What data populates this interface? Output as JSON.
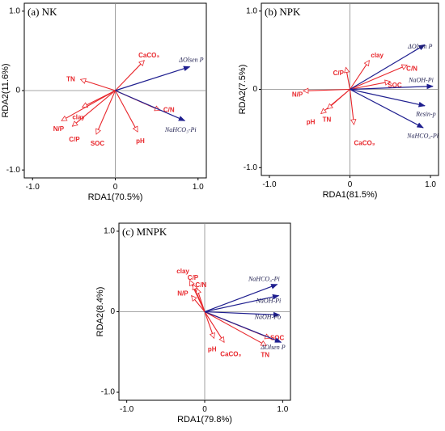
{
  "colors": {
    "soil": "#e8262b",
    "phosphorus": "#1f1f8f"
  },
  "chart_data": [
    {
      "type": "scatter",
      "title": "(a) NK",
      "xlabel": "RDA1(70.5%)",
      "ylabel": "RDA2(11.6%)",
      "xlim": [
        -1.0,
        1.0
      ],
      "ylim": [
        -1.0,
        1.0
      ],
      "xticks": [
        "-1.0",
        "0",
        "1.0"
      ],
      "yticks": [
        "-1.0",
        "0",
        "1.0"
      ],
      "soil_vectors": [
        {
          "label": "CaCO₃",
          "x": 0.35,
          "y": 0.38,
          "lx": 0.28,
          "ly": 0.44
        },
        {
          "label": "TN",
          "x": -0.42,
          "y": 0.14,
          "lx": -0.59,
          "ly": 0.14
        },
        {
          "label": "clay",
          "x": -0.4,
          "y": -0.21,
          "lx": -0.52,
          "ly": -0.34
        },
        {
          "label": "N/P",
          "x": -0.65,
          "y": -0.38,
          "lx": -0.75,
          "ly": -0.49
        },
        {
          "label": "C/P",
          "x": -0.52,
          "y": -0.45,
          "lx": -0.56,
          "ly": -0.62
        },
        {
          "label": "SOC",
          "x": -0.23,
          "y": -0.55,
          "lx": -0.3,
          "ly": -0.67
        },
        {
          "label": "C/N",
          "x": 0.54,
          "y": -0.25,
          "lx": 0.58,
          "ly": -0.25
        },
        {
          "label": "pH",
          "x": 0.27,
          "y": -0.52,
          "lx": 0.25,
          "ly": -0.64
        }
      ],
      "p_vectors": [
        {
          "label": "ΔOlsen P",
          "x": 0.9,
          "y": 0.3,
          "lx": 0.77,
          "ly": 0.38
        },
        {
          "label": "NaHCO₃-Pi",
          "x": 0.84,
          "y": -0.38,
          "lx": 0.6,
          "ly": -0.5
        }
      ]
    },
    {
      "type": "scatter",
      "title": "(b) NPK",
      "xlabel": "RDA1(81.5%)",
      "ylabel": "RDA2(7.5%)",
      "xlim": [
        -1.0,
        1.0
      ],
      "ylim": [
        -1.0,
        1.0
      ],
      "xticks": [
        "-1.0",
        "0",
        "1.0"
      ],
      "yticks": [
        "-1.0",
        "0",
        "1.0"
      ],
      "soil_vectors": [
        {
          "label": "clay",
          "x": 0.24,
          "y": 0.37,
          "lx": 0.26,
          "ly": 0.43
        },
        {
          "label": "C/P",
          "x": -0.05,
          "y": 0.28,
          "lx": -0.21,
          "ly": 0.2
        },
        {
          "label": "C/N",
          "x": 0.71,
          "y": 0.31,
          "lx": 0.7,
          "ly": 0.26
        },
        {
          "label": "SOC",
          "x": 0.5,
          "y": 0.1,
          "lx": 0.47,
          "ly": 0.05
        },
        {
          "label": "N/P",
          "x": -0.58,
          "y": -0.02,
          "lx": -0.72,
          "ly": -0.07
        },
        {
          "label": "pH",
          "x": -0.36,
          "y": -0.31,
          "lx": -0.54,
          "ly": -0.42
        },
        {
          "label": "TN",
          "x": -0.28,
          "y": -0.25,
          "lx": -0.34,
          "ly": -0.39
        },
        {
          "label": "CaCO₃",
          "x": 0.05,
          "y": -0.45,
          "lx": 0.05,
          "ly": -0.69
        }
      ],
      "p_vectors": [
        {
          "label": "ΔOlsen P",
          "x": 0.93,
          "y": 0.57,
          "lx": 0.72,
          "ly": 0.54
        },
        {
          "label": "NaOH-Pi",
          "x": 1.03,
          "y": 0.04,
          "lx": 0.73,
          "ly": 0.11
        },
        {
          "label": "Resin-p",
          "x": 0.93,
          "y": -0.21,
          "lx": 0.82,
          "ly": -0.32
        },
        {
          "label": "NaHCO₃-Pi",
          "x": 0.91,
          "y": -0.49,
          "lx": 0.71,
          "ly": -0.6
        }
      ]
    },
    {
      "type": "scatter",
      "title": "(c) MNPK",
      "xlabel": "RDA1(79.8%)",
      "ylabel": "RDA2(8.4%)",
      "xlim": [
        -1.0,
        1.0
      ],
      "ylim": [
        -1.0,
        1.0
      ],
      "xticks": [
        "-1.0",
        "0",
        "1.0"
      ],
      "yticks": [
        "-1.0",
        "0",
        "1.0"
      ],
      "soil_vectors": [
        {
          "label": "clay",
          "x": -0.19,
          "y": 0.39,
          "lx": -0.36,
          "ly": 0.5
        },
        {
          "label": "C/P",
          "x": -0.15,
          "y": 0.34,
          "lx": -0.22,
          "ly": 0.42
        },
        {
          "label": "C/N",
          "x": -0.1,
          "y": 0.29,
          "lx": -0.12,
          "ly": 0.33
        },
        {
          "label": "N/P",
          "x": -0.17,
          "y": 0.2,
          "lx": -0.35,
          "ly": 0.22
        },
        {
          "label": "pH",
          "x": 0.12,
          "y": -0.33,
          "lx": 0.04,
          "ly": -0.47
        },
        {
          "label": "CaCO₃",
          "x": 0.25,
          "y": -0.38,
          "lx": 0.2,
          "ly": -0.53
        },
        {
          "label": "SOC",
          "x": 0.84,
          "y": -0.33,
          "lx": 0.84,
          "ly": -0.33
        },
        {
          "label": "TN",
          "x": 0.79,
          "y": -0.42,
          "lx": 0.72,
          "ly": -0.54
        }
      ],
      "p_vectors": [
        {
          "label": "NaHCO₃-Pi",
          "x": 0.93,
          "y": 0.34,
          "lx": 0.56,
          "ly": 0.4
        },
        {
          "label": "NaOH-Pi",
          "x": 0.95,
          "y": 0.2,
          "lx": 0.66,
          "ly": 0.13
        },
        {
          "label": "NaOH-Po",
          "x": 0.96,
          "y": -0.04,
          "lx": 0.64,
          "ly": -0.07
        },
        {
          "label": "ΔOlsen P",
          "x": 0.98,
          "y": -0.38,
          "lx": 0.72,
          "ly": -0.45
        }
      ]
    }
  ]
}
